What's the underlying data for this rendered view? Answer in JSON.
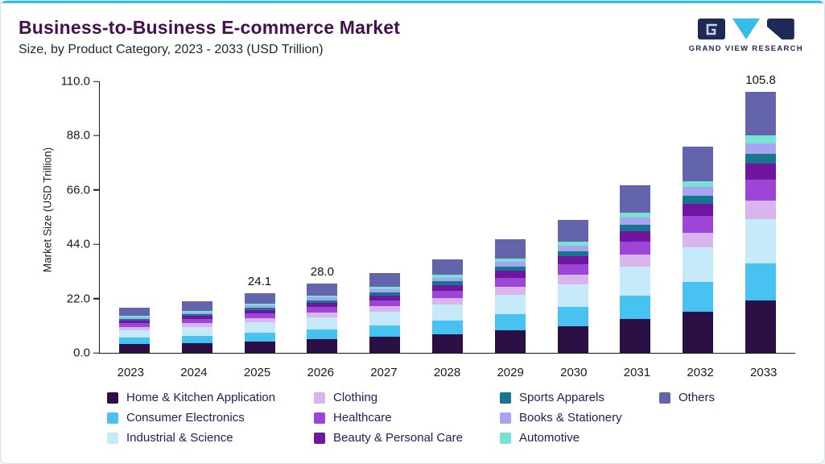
{
  "page": {
    "title": "Business-to-Business E-commerce Market",
    "subtitle": "Size, by Product Category, 2023 - 2033 (USD Trillion)"
  },
  "logo": {
    "text": "GRAND VIEW RESEARCH"
  },
  "colors": {
    "accent": "#35BDE8",
    "title": "#45104F",
    "logo_navy": "#1E2A56",
    "legend_text": "#20205C",
    "axis": "#1a1a1a"
  },
  "chart_data": {
    "type": "bar",
    "stacked": true,
    "title": "Business-to-Business E-commerce Market",
    "subtitle": "Size, by Product Category, 2023 - 2033 (USD Trillion)",
    "xlabel": "",
    "ylabel": "Market Size (USD Trillion)",
    "ylim": [
      0,
      110
    ],
    "ytick_labels": [
      "0.0",
      "22.0",
      "44.0",
      "66.0",
      "88.0",
      "110.0"
    ],
    "grid": false,
    "legend_position": "bottom",
    "categories": [
      "2023",
      "2024",
      "2025",
      "2026",
      "2027",
      "2028",
      "2029",
      "2030",
      "2031",
      "2032",
      "2033"
    ],
    "series": [
      {
        "name": "Home & Kitchen Application",
        "color": "#2A1045",
        "values": [
          3.5,
          4.0,
          4.7,
          5.5,
          6.4,
          7.6,
          9.2,
          10.9,
          13.7,
          16.8,
          21.3
        ]
      },
      {
        "name": "Consumer Electronics",
        "color": "#47C2F1",
        "values": [
          2.6,
          3.0,
          3.5,
          4.0,
          4.6,
          5.4,
          6.5,
          7.6,
          9.6,
          11.8,
          14.9
        ]
      },
      {
        "name": "Industrial & Science",
        "color": "#C6EAF9",
        "values": [
          3.1,
          3.5,
          4.1,
          4.8,
          5.5,
          6.5,
          7.8,
          9.2,
          11.6,
          14.2,
          18.0
        ]
      },
      {
        "name": "Clothing",
        "color": "#D8B5EC",
        "values": [
          1.3,
          1.5,
          1.7,
          2.0,
          2.3,
          2.7,
          3.3,
          3.9,
          4.9,
          6.0,
          7.6
        ]
      },
      {
        "name": "Healthcare",
        "color": "#9C45D6",
        "values": [
          1.5,
          1.7,
          1.9,
          2.2,
          2.6,
          3.0,
          3.7,
          4.3,
          5.4,
          6.7,
          8.5
        ]
      },
      {
        "name": "Beauty & Personal Care",
        "color": "#70169E",
        "values": [
          1.1,
          1.2,
          1.4,
          1.7,
          1.9,
          2.3,
          2.8,
          3.2,
          4.1,
          5.0,
          6.3
        ]
      },
      {
        "name": "Sports Apparels",
        "color": "#16758F",
        "values": [
          0.7,
          0.8,
          1.0,
          1.1,
          1.3,
          1.5,
          1.8,
          2.2,
          2.7,
          3.3,
          4.2
        ]
      },
      {
        "name": "Books & Stationery",
        "color": "#A7A4F0",
        "values": [
          0.7,
          0.8,
          0.9,
          1.1,
          1.2,
          1.5,
          1.8,
          2.1,
          2.7,
          3.3,
          4.2
        ]
      },
      {
        "name": "Automotive",
        "color": "#79E3D3",
        "values": [
          0.5,
          0.6,
          0.7,
          0.8,
          1.0,
          1.1,
          1.4,
          1.6,
          2.0,
          2.5,
          3.2
        ]
      },
      {
        "name": "Others",
        "color": "#6364AC",
        "values": [
          3.2,
          3.7,
          4.2,
          4.8,
          5.5,
          6.4,
          7.7,
          9.0,
          11.3,
          13.9,
          17.6
        ]
      }
    ],
    "value_labels": {
      "2025": "24.1",
      "2026": "28.0",
      "2033": "105.8"
    }
  },
  "legend": {
    "rows": [
      [
        "Home & Kitchen Application",
        "Clothing",
        "Sports Apparels",
        "Others"
      ],
      [
        "Consumer Electronics",
        "Healthcare",
        "Books & Stationery",
        ""
      ],
      [
        "Industrial & Science",
        "Beauty & Personal Care",
        "Automotive",
        ""
      ]
    ]
  }
}
